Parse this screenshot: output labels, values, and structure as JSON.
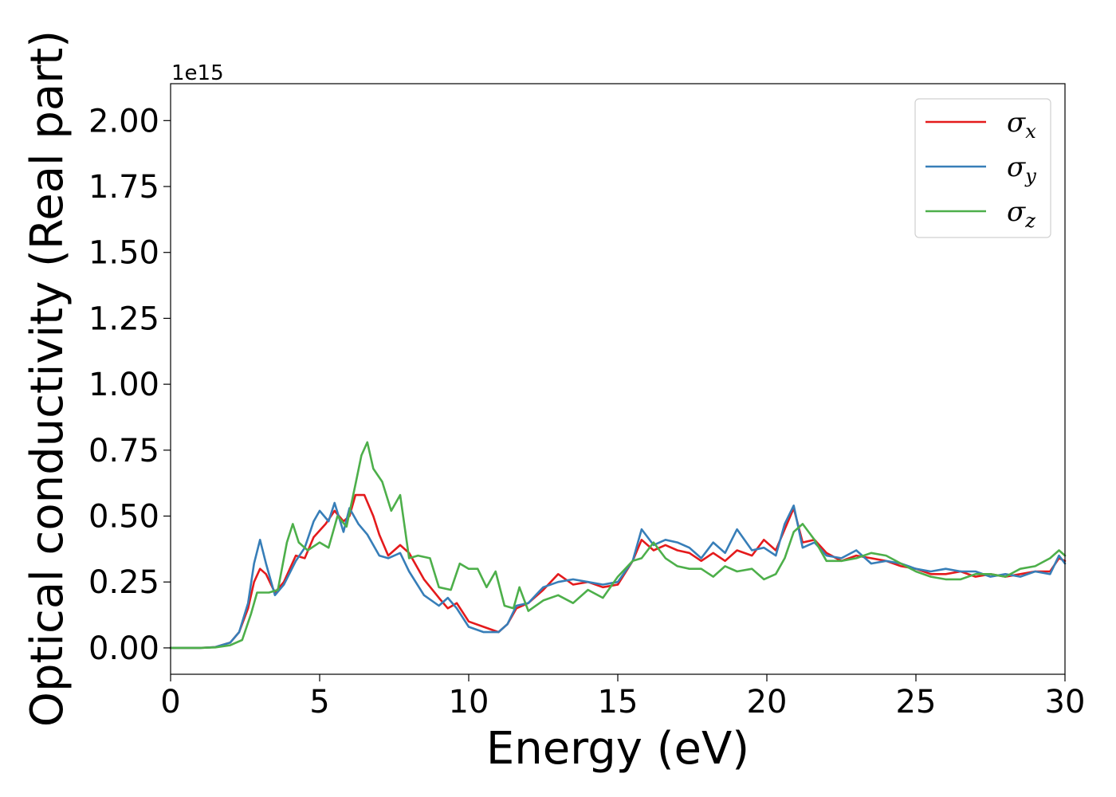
{
  "chart_data": {
    "type": "line",
    "title": "",
    "xlabel": "Energy (eV)",
    "ylabel": "Optical conductivity (Real part)",
    "y_offset_text": "1e15",
    "xlim": [
      0,
      30
    ],
    "ylim": [
      -0.1,
      2.14
    ],
    "xticks": [
      0,
      5,
      10,
      15,
      20,
      25,
      30
    ],
    "yticks": [
      0.0,
      0.25,
      0.5,
      0.75,
      1.0,
      1.25,
      1.5,
      1.75,
      2.0
    ],
    "xtick_labels": [
      "0",
      "5",
      "10",
      "15",
      "20",
      "25",
      "30"
    ],
    "ytick_labels": [
      "0.00",
      "0.25",
      "0.50",
      "0.75",
      "1.00",
      "1.25",
      "1.50",
      "1.75",
      "2.00"
    ],
    "grid": false,
    "legend_position": "top-right",
    "series": [
      {
        "name": "σx",
        "legend_symbol": "σ",
        "legend_sub": "x",
        "color": "#e41a1c",
        "points": [
          [
            0,
            0.0
          ],
          [
            1,
            0.0
          ],
          [
            1.5,
            0.003
          ],
          [
            2.0,
            0.02
          ],
          [
            2.3,
            0.06
          ],
          [
            2.6,
            0.15
          ],
          [
            2.8,
            0.25
          ],
          [
            3.0,
            0.3
          ],
          [
            3.2,
            0.28
          ],
          [
            3.5,
            0.21
          ],
          [
            3.8,
            0.25
          ],
          [
            4.2,
            0.35
          ],
          [
            4.5,
            0.34
          ],
          [
            4.8,
            0.42
          ],
          [
            5.2,
            0.47
          ],
          [
            5.5,
            0.52
          ],
          [
            5.8,
            0.48
          ],
          [
            6.0,
            0.5
          ],
          [
            6.2,
            0.58
          ],
          [
            6.5,
            0.58
          ],
          [
            6.8,
            0.5
          ],
          [
            7.0,
            0.43
          ],
          [
            7.3,
            0.35
          ],
          [
            7.7,
            0.39
          ],
          [
            8.0,
            0.36
          ],
          [
            8.5,
            0.26
          ],
          [
            9.0,
            0.19
          ],
          [
            9.3,
            0.15
          ],
          [
            9.6,
            0.17
          ],
          [
            10.0,
            0.1
          ],
          [
            10.5,
            0.08
          ],
          [
            11.0,
            0.06
          ],
          [
            11.3,
            0.09
          ],
          [
            11.6,
            0.15
          ],
          [
            12.0,
            0.17
          ],
          [
            12.5,
            0.22
          ],
          [
            13.0,
            0.28
          ],
          [
            13.5,
            0.24
          ],
          [
            14.0,
            0.25
          ],
          [
            14.5,
            0.23
          ],
          [
            15.0,
            0.24
          ],
          [
            15.5,
            0.33
          ],
          [
            15.8,
            0.41
          ],
          [
            16.2,
            0.37
          ],
          [
            16.6,
            0.39
          ],
          [
            17.0,
            0.37
          ],
          [
            17.4,
            0.36
          ],
          [
            17.8,
            0.33
          ],
          [
            18.2,
            0.36
          ],
          [
            18.6,
            0.33
          ],
          [
            19.0,
            0.37
          ],
          [
            19.5,
            0.35
          ],
          [
            19.9,
            0.41
          ],
          [
            20.3,
            0.37
          ],
          [
            20.6,
            0.45
          ],
          [
            20.9,
            0.53
          ],
          [
            21.2,
            0.4
          ],
          [
            21.6,
            0.41
          ],
          [
            22.0,
            0.36
          ],
          [
            22.5,
            0.33
          ],
          [
            23.0,
            0.35
          ],
          [
            23.5,
            0.34
          ],
          [
            24.0,
            0.33
          ],
          [
            24.5,
            0.31
          ],
          [
            25.0,
            0.3
          ],
          [
            25.5,
            0.28
          ],
          [
            26.0,
            0.28
          ],
          [
            26.5,
            0.29
          ],
          [
            27.0,
            0.27
          ],
          [
            27.5,
            0.28
          ],
          [
            28.0,
            0.27
          ],
          [
            28.5,
            0.28
          ],
          [
            29.0,
            0.29
          ],
          [
            29.5,
            0.29
          ],
          [
            29.8,
            0.34
          ],
          [
            30.0,
            0.33
          ]
        ]
      },
      {
        "name": "σy",
        "legend_symbol": "σ",
        "legend_sub": "y",
        "color": "#377eb8",
        "points": [
          [
            0,
            0.0
          ],
          [
            1,
            0.0
          ],
          [
            1.5,
            0.003
          ],
          [
            2.0,
            0.02
          ],
          [
            2.3,
            0.06
          ],
          [
            2.6,
            0.17
          ],
          [
            2.8,
            0.32
          ],
          [
            3.0,
            0.41
          ],
          [
            3.2,
            0.32
          ],
          [
            3.5,
            0.2
          ],
          [
            3.8,
            0.24
          ],
          [
            4.2,
            0.33
          ],
          [
            4.5,
            0.38
          ],
          [
            4.8,
            0.48
          ],
          [
            5.0,
            0.52
          ],
          [
            5.3,
            0.48
          ],
          [
            5.5,
            0.55
          ],
          [
            5.8,
            0.44
          ],
          [
            6.0,
            0.53
          ],
          [
            6.3,
            0.47
          ],
          [
            6.6,
            0.43
          ],
          [
            7.0,
            0.35
          ],
          [
            7.3,
            0.34
          ],
          [
            7.7,
            0.36
          ],
          [
            8.0,
            0.29
          ],
          [
            8.5,
            0.2
          ],
          [
            9.0,
            0.16
          ],
          [
            9.3,
            0.19
          ],
          [
            9.6,
            0.15
          ],
          [
            10.0,
            0.08
          ],
          [
            10.5,
            0.06
          ],
          [
            11.0,
            0.06
          ],
          [
            11.3,
            0.09
          ],
          [
            11.6,
            0.16
          ],
          [
            12.0,
            0.17
          ],
          [
            12.5,
            0.23
          ],
          [
            13.0,
            0.25
          ],
          [
            13.5,
            0.26
          ],
          [
            14.0,
            0.25
          ],
          [
            14.5,
            0.24
          ],
          [
            15.0,
            0.25
          ],
          [
            15.5,
            0.33
          ],
          [
            15.8,
            0.45
          ],
          [
            16.2,
            0.39
          ],
          [
            16.6,
            0.41
          ],
          [
            17.0,
            0.4
          ],
          [
            17.4,
            0.38
          ],
          [
            17.8,
            0.34
          ],
          [
            18.2,
            0.4
          ],
          [
            18.6,
            0.36
          ],
          [
            19.0,
            0.45
          ],
          [
            19.5,
            0.37
          ],
          [
            19.9,
            0.38
          ],
          [
            20.3,
            0.35
          ],
          [
            20.6,
            0.47
          ],
          [
            20.9,
            0.54
          ],
          [
            21.2,
            0.38
          ],
          [
            21.6,
            0.4
          ],
          [
            22.0,
            0.35
          ],
          [
            22.5,
            0.34
          ],
          [
            23.0,
            0.37
          ],
          [
            23.5,
            0.32
          ],
          [
            24.0,
            0.33
          ],
          [
            24.5,
            0.32
          ],
          [
            25.0,
            0.3
          ],
          [
            25.5,
            0.29
          ],
          [
            26.0,
            0.3
          ],
          [
            26.5,
            0.29
          ],
          [
            27.0,
            0.29
          ],
          [
            27.5,
            0.27
          ],
          [
            28.0,
            0.28
          ],
          [
            28.5,
            0.27
          ],
          [
            29.0,
            0.29
          ],
          [
            29.5,
            0.28
          ],
          [
            29.8,
            0.35
          ],
          [
            30.0,
            0.32
          ]
        ]
      },
      {
        "name": "σz",
        "legend_symbol": "σ",
        "legend_sub": "z",
        "color": "#4daf4a",
        "points": [
          [
            0,
            0.0
          ],
          [
            1,
            0.0
          ],
          [
            1.5,
            0.002
          ],
          [
            2.0,
            0.01
          ],
          [
            2.4,
            0.03
          ],
          [
            2.7,
            0.13
          ],
          [
            2.9,
            0.21
          ],
          [
            3.3,
            0.21
          ],
          [
            3.6,
            0.22
          ],
          [
            3.9,
            0.4
          ],
          [
            4.1,
            0.47
          ],
          [
            4.3,
            0.4
          ],
          [
            4.6,
            0.37
          ],
          [
            5.0,
            0.4
          ],
          [
            5.3,
            0.38
          ],
          [
            5.6,
            0.5
          ],
          [
            5.9,
            0.46
          ],
          [
            6.2,
            0.62
          ],
          [
            6.4,
            0.73
          ],
          [
            6.6,
            0.78
          ],
          [
            6.8,
            0.68
          ],
          [
            7.1,
            0.63
          ],
          [
            7.4,
            0.52
          ],
          [
            7.7,
            0.58
          ],
          [
            8.0,
            0.34
          ],
          [
            8.3,
            0.35
          ],
          [
            8.7,
            0.34
          ],
          [
            9.0,
            0.23
          ],
          [
            9.4,
            0.22
          ],
          [
            9.7,
            0.32
          ],
          [
            10.0,
            0.3
          ],
          [
            10.3,
            0.3
          ],
          [
            10.6,
            0.23
          ],
          [
            10.9,
            0.29
          ],
          [
            11.2,
            0.16
          ],
          [
            11.5,
            0.15
          ],
          [
            11.7,
            0.23
          ],
          [
            12.0,
            0.14
          ],
          [
            12.5,
            0.18
          ],
          [
            13.0,
            0.2
          ],
          [
            13.5,
            0.17
          ],
          [
            14.0,
            0.22
          ],
          [
            14.5,
            0.19
          ],
          [
            15.0,
            0.27
          ],
          [
            15.5,
            0.33
          ],
          [
            15.8,
            0.34
          ],
          [
            16.2,
            0.4
          ],
          [
            16.6,
            0.34
          ],
          [
            17.0,
            0.31
          ],
          [
            17.4,
            0.3
          ],
          [
            17.8,
            0.3
          ],
          [
            18.2,
            0.27
          ],
          [
            18.6,
            0.31
          ],
          [
            19.0,
            0.29
          ],
          [
            19.5,
            0.3
          ],
          [
            19.9,
            0.26
          ],
          [
            20.3,
            0.28
          ],
          [
            20.6,
            0.34
          ],
          [
            20.9,
            0.44
          ],
          [
            21.2,
            0.47
          ],
          [
            21.6,
            0.41
          ],
          [
            22.0,
            0.33
          ],
          [
            22.5,
            0.33
          ],
          [
            23.0,
            0.34
          ],
          [
            23.5,
            0.36
          ],
          [
            24.0,
            0.35
          ],
          [
            24.5,
            0.32
          ],
          [
            25.0,
            0.29
          ],
          [
            25.5,
            0.27
          ],
          [
            26.0,
            0.26
          ],
          [
            26.5,
            0.26
          ],
          [
            27.0,
            0.28
          ],
          [
            27.5,
            0.28
          ],
          [
            28.0,
            0.27
          ],
          [
            28.5,
            0.3
          ],
          [
            29.0,
            0.31
          ],
          [
            29.5,
            0.34
          ],
          [
            29.8,
            0.37
          ],
          [
            30.0,
            0.35
          ]
        ]
      }
    ]
  }
}
